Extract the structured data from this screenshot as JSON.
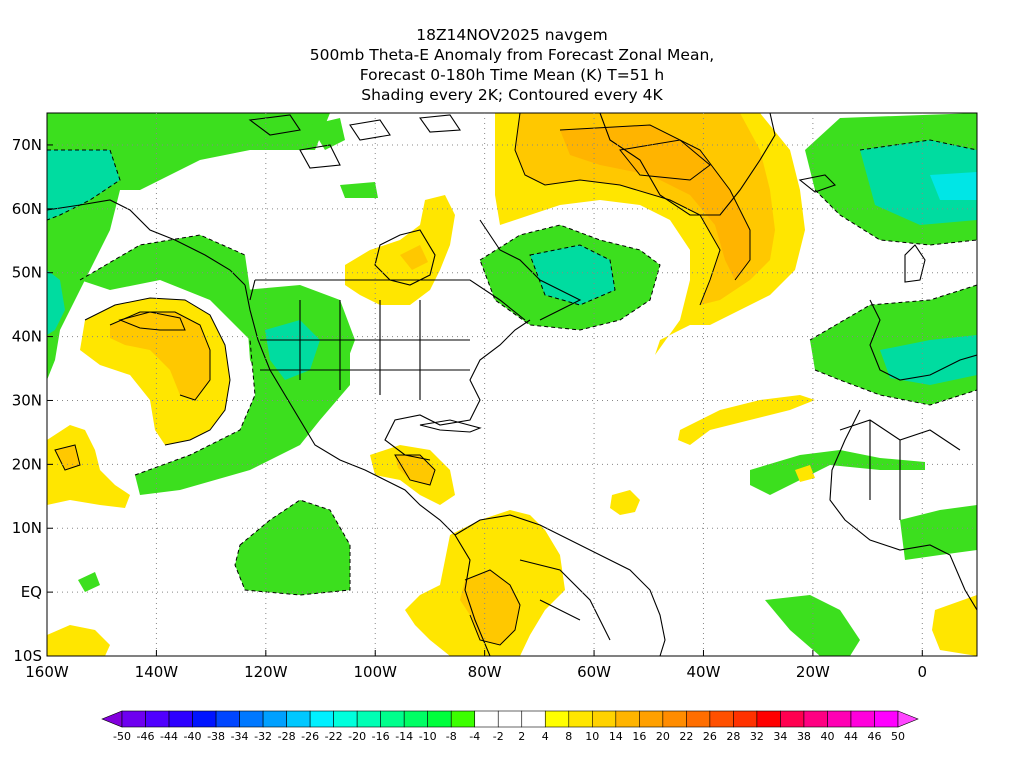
{
  "title": {
    "line1": "18Z14NOV2025 navgem",
    "line2": "500mb Theta-E Anomaly from Forecast Zonal Mean,",
    "line3": "Forecast 0-180h Time Mean (K) T=51 h",
    "line4": "Shading every 2K; Contoured every 4K"
  },
  "map": {
    "lon_range": [
      -160,
      10
    ],
    "lat_range": [
      -10,
      75
    ],
    "lon_labels": [
      "160W",
      "140W",
      "120W",
      "100W",
      "80W",
      "60W",
      "40W",
      "20W",
      "0"
    ],
    "lat_labels": [
      "70N",
      "60N",
      "50N",
      "40N",
      "30N",
      "20N",
      "10N",
      "EQ",
      "10S"
    ],
    "units": "K"
  },
  "colorbar": {
    "labels": [
      "-50",
      "-46",
      "-44",
      "-40",
      "-38",
      "-34",
      "-32",
      "-28",
      "-26",
      "-22",
      "-20",
      "-16",
      "-14",
      "-10",
      "-8",
      "-4",
      "-2",
      "2",
      "4",
      "8",
      "10",
      "14",
      "16",
      "20",
      "22",
      "26",
      "28",
      "32",
      "34",
      "38",
      "40",
      "44",
      "46",
      "50"
    ],
    "colors": [
      "#8200dc",
      "#6e00f0",
      "#5000ff",
      "#2d00ff",
      "#0014ff",
      "#0046ff",
      "#0078ff",
      "#00a0ff",
      "#00c8ff",
      "#00f0ff",
      "#00ffdc",
      "#00ffb4",
      "#00ff8c",
      "#00ff64",
      "#00ff3c",
      "#3cff00",
      "#ffffff",
      "#ffffff",
      "#ffffff",
      "#ffff00",
      "#ffe600",
      "#ffd200",
      "#ffb400",
      "#ffa000",
      "#ff8c00",
      "#ff6e00",
      "#ff5000",
      "#ff3200",
      "#ff0000",
      "#ff0050",
      "#ff0082",
      "#ff00b4",
      "#ff00dc",
      "#ff00ff",
      "#ff46ff"
    ]
  },
  "colors": {
    "neg_shade": "#3cdf1e",
    "neg_shade2": "#00e68c",
    "pos_shade": "#ffe600",
    "pos_shade2": "#ffc800",
    "pos_shade3": "#ffa000",
    "neg_shade_cyan": "#00dcdc"
  }
}
